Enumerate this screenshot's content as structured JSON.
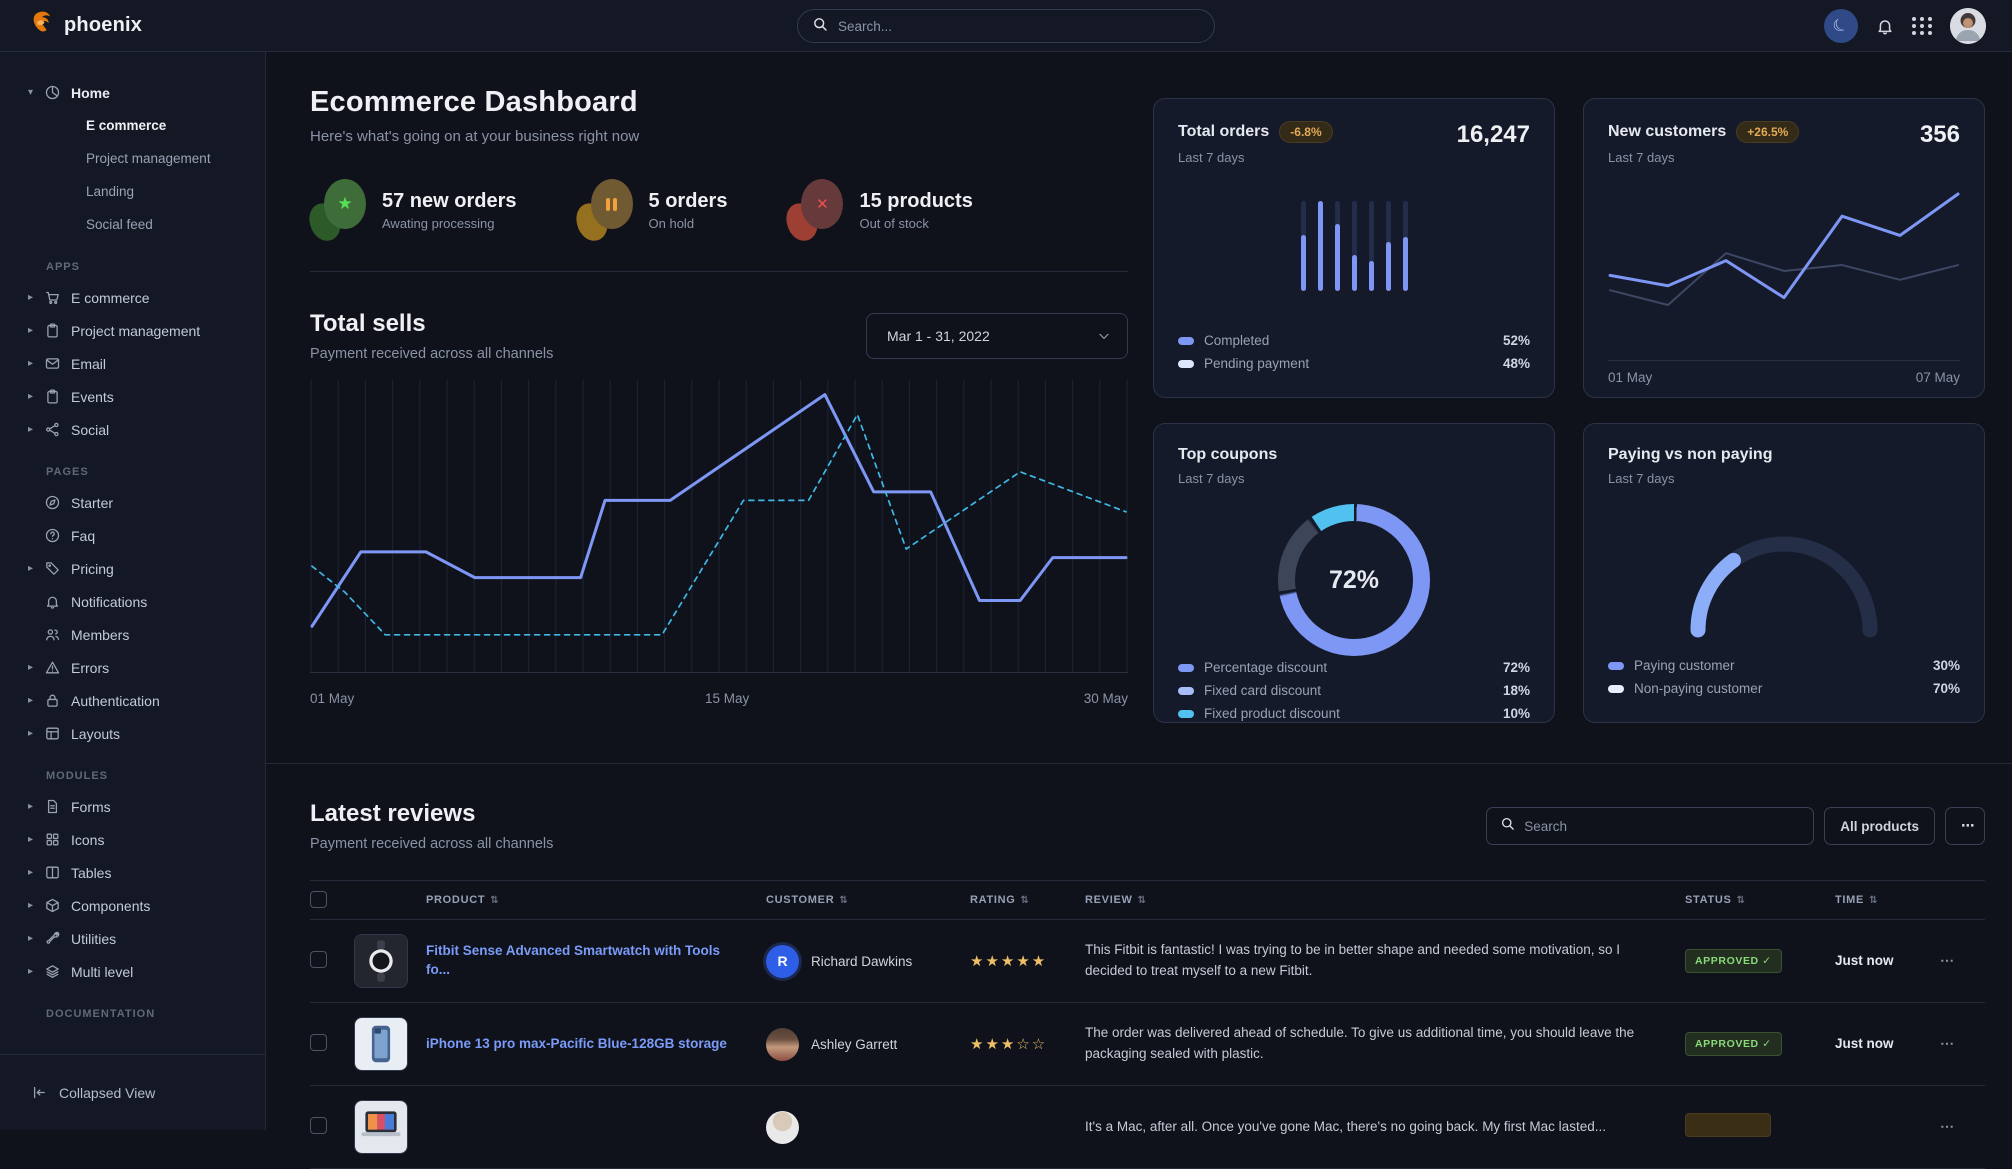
{
  "navbar": {
    "brand": "phoenix",
    "search_placeholder": "Search..."
  },
  "sidebar": {
    "home": {
      "label": "Home",
      "icon": "pie-chart",
      "children": [
        {
          "label": "E commerce",
          "active": true
        },
        {
          "label": "Project management",
          "active": false
        },
        {
          "label": "Landing",
          "active": false
        },
        {
          "label": "Social feed",
          "active": false
        }
      ]
    },
    "sections": [
      {
        "heading": "APPS",
        "items": [
          {
            "label": "E commerce",
            "icon": "cart",
            "caret": true
          },
          {
            "label": "Project management",
            "icon": "clipboard",
            "caret": true
          },
          {
            "label": "Email",
            "icon": "envelope",
            "caret": true
          },
          {
            "label": "Events",
            "icon": "clipboard",
            "caret": true
          },
          {
            "label": "Social",
            "icon": "share",
            "caret": true
          }
        ]
      },
      {
        "heading": "PAGES",
        "items": [
          {
            "label": "Starter",
            "icon": "compass",
            "caret": false
          },
          {
            "label": "Faq",
            "icon": "question",
            "caret": false
          },
          {
            "label": "Pricing",
            "icon": "tag",
            "caret": true
          },
          {
            "label": "Notifications",
            "icon": "bell",
            "caret": false
          },
          {
            "label": "Members",
            "icon": "users",
            "caret": false
          },
          {
            "label": "Errors",
            "icon": "warning",
            "caret": true
          },
          {
            "label": "Authentication",
            "icon": "lock",
            "caret": true
          },
          {
            "label": "Layouts",
            "icon": "layout",
            "caret": true
          }
        ]
      },
      {
        "heading": "MODULES",
        "items": [
          {
            "label": "Forms",
            "icon": "file",
            "caret": true
          },
          {
            "label": "Icons",
            "icon": "grid",
            "caret": true
          },
          {
            "label": "Tables",
            "icon": "table",
            "caret": true
          },
          {
            "label": "Components",
            "icon": "box",
            "caret": true
          },
          {
            "label": "Utilities",
            "icon": "wrench",
            "caret": true
          },
          {
            "label": "Multi level",
            "icon": "layers",
            "caret": true
          }
        ]
      },
      {
        "heading": "DOCUMENTATION",
        "items": []
      }
    ],
    "collapse_label": "Collapsed View"
  },
  "dashboard": {
    "title": "Ecommerce Dashboard",
    "subtitle": "Here's what's going on at your business right now",
    "stats": [
      {
        "value": "57 new orders",
        "caption": "Awating processing",
        "theme": "green",
        "glyph": "star"
      },
      {
        "value": "5 orders",
        "caption": "On hold",
        "theme": "amber",
        "glyph": "pause"
      },
      {
        "value": "15 products",
        "caption": "Out of stock",
        "theme": "red",
        "glyph": "x"
      }
    ],
    "total_sells": {
      "title": "Total sells",
      "subtitle": "Payment received across all channels",
      "date_range": "Mar 1 - 31, 2022"
    },
    "cards": {
      "total_orders": {
        "title": "Total orders",
        "badge": "-6.8%",
        "period": "Last 7 days",
        "value": "16,247",
        "legend": [
          {
            "label": "Completed",
            "value": "52%",
            "color": "#7e97f5"
          },
          {
            "label": "Pending payment",
            "value": "48%",
            "color": "#dde6fb"
          }
        ]
      },
      "new_customers": {
        "title": "New customers",
        "badge": "+26.5%",
        "period": "Last 7 days",
        "value": "356",
        "x_start": "01 May",
        "x_end": "07 May"
      },
      "top_coupons": {
        "title": "Top coupons",
        "period": "Last 7 days",
        "center_value": "72%",
        "legend": [
          {
            "label": "Percentage discount",
            "value": "72%",
            "color": "#7e97f5"
          },
          {
            "label": "Fixed card discount",
            "value": "18%",
            "color": "#a8bdf8"
          },
          {
            "label": "Fixed product discount",
            "value": "10%",
            "color": "#51c2f0"
          }
        ]
      },
      "paying": {
        "title": "Paying vs non paying",
        "period": "Last 7 days",
        "legend": [
          {
            "label": "Paying customer",
            "value": "30%",
            "color": "#7e97f5"
          },
          {
            "label": "Non-paying customer",
            "value": "70%",
            "color": "#e9eefc"
          }
        ]
      }
    }
  },
  "reviews": {
    "title": "Latest reviews",
    "subtitle": "Payment received across all channels",
    "search_placeholder": "Search",
    "filter_label": "All products",
    "menu_label": "⋯",
    "columns": [
      "PRODUCT",
      "CUSTOMER",
      "RATING",
      "REVIEW",
      "STATUS",
      "TIME"
    ],
    "rows": [
      {
        "product": "Fitbit Sense Advanced Smartwatch with Tools fo...",
        "thumb": "smartwatch",
        "customer": "Richard Dawkins",
        "avatar": "initial",
        "avatar_text": "R",
        "rating": 5,
        "rating_max": 5,
        "review": "This Fitbit is fantastic! I was trying to be in better shape and needed some motivation, so I decided to treat myself to a new Fitbit.",
        "status": "APPROVED",
        "time": "Just now"
      },
      {
        "product": "iPhone 13 pro max-Pacific Blue-128GB storage",
        "thumb": "iphone",
        "customer": "Ashley Garrett",
        "avatar": "photo-woman",
        "avatar_text": "",
        "rating": 3,
        "rating_max": 5,
        "review": "The order was delivered ahead of schedule. To give us additional time, you should leave the packaging sealed with plastic.",
        "status": "APPROVED",
        "time": "Just now"
      },
      {
        "product": "",
        "thumb": "macbook",
        "customer": "",
        "avatar": "photo-hood",
        "avatar_text": "",
        "rating": 0,
        "rating_max": 5,
        "review": "It's a Mac, after all. Once you've gone Mac, there's no going back. My first Mac lasted...",
        "status": "",
        "time": ""
      }
    ]
  },
  "chart_data": [
    {
      "id": "total_sells",
      "type": "line",
      "title": "Total sells",
      "x_labels": [
        "01 May",
        "15 May",
        "30 May"
      ],
      "gridlines": 31,
      "ylim": [
        0,
        100
      ],
      "grid_color": "#1e2535",
      "series": [
        {
          "name": "current",
          "style": "solid",
          "color": "#7e97f5",
          "points": [
            [
              0,
              16
            ],
            [
              6,
              42
            ],
            [
              14,
              42
            ],
            [
              20,
              33
            ],
            [
              33,
              33
            ],
            [
              36,
              60
            ],
            [
              44,
              60
            ],
            [
              63,
              97
            ],
            [
              69,
              63
            ],
            [
              76,
              63
            ],
            [
              82,
              25
            ],
            [
              87,
              25
            ],
            [
              91,
              40
            ],
            [
              100,
              40
            ]
          ]
        },
        {
          "name": "previous",
          "style": "dashed",
          "color": "#3fb8e6",
          "points": [
            [
              0,
              37
            ],
            [
              4,
              28
            ],
            [
              9,
              13
            ],
            [
              43,
              13
            ],
            [
              53,
              60
            ],
            [
              61,
              60
            ],
            [
              67,
              90
            ],
            [
              73,
              43
            ],
            [
              87,
              70
            ],
            [
              100,
              56
            ]
          ]
        }
      ]
    },
    {
      "id": "total_orders_bars",
      "type": "bar",
      "completed_pct": [
        62,
        100,
        75,
        40,
        33,
        54,
        60
      ],
      "track_color": "#232d49",
      "fill_color": "#7e97f5"
    },
    {
      "id": "new_customers_trend",
      "type": "line",
      "series": [
        {
          "name": "current",
          "color": "#7e97f5",
          "values": [
            45,
            38,
            55,
            30,
            85,
            72,
            100
          ]
        },
        {
          "name": "previous",
          "color": "#3e4763",
          "values": [
            35,
            25,
            60,
            48,
            52,
            42,
            52
          ]
        }
      ]
    },
    {
      "id": "top_coupons_donut",
      "type": "donut",
      "center_label": "72%",
      "segments": [
        {
          "label": "Percentage discount",
          "value": 72,
          "color": "#7e97f5"
        },
        {
          "label": "Fixed card discount",
          "value": 18,
          "color": "#3d4659"
        },
        {
          "label": "Fixed product discount",
          "value": 10,
          "color": "#51c2f0"
        }
      ]
    },
    {
      "id": "paying_gauge",
      "type": "gauge",
      "value_pct": 30,
      "value_color": "#8caef9",
      "track_color": "#252e47"
    }
  ]
}
